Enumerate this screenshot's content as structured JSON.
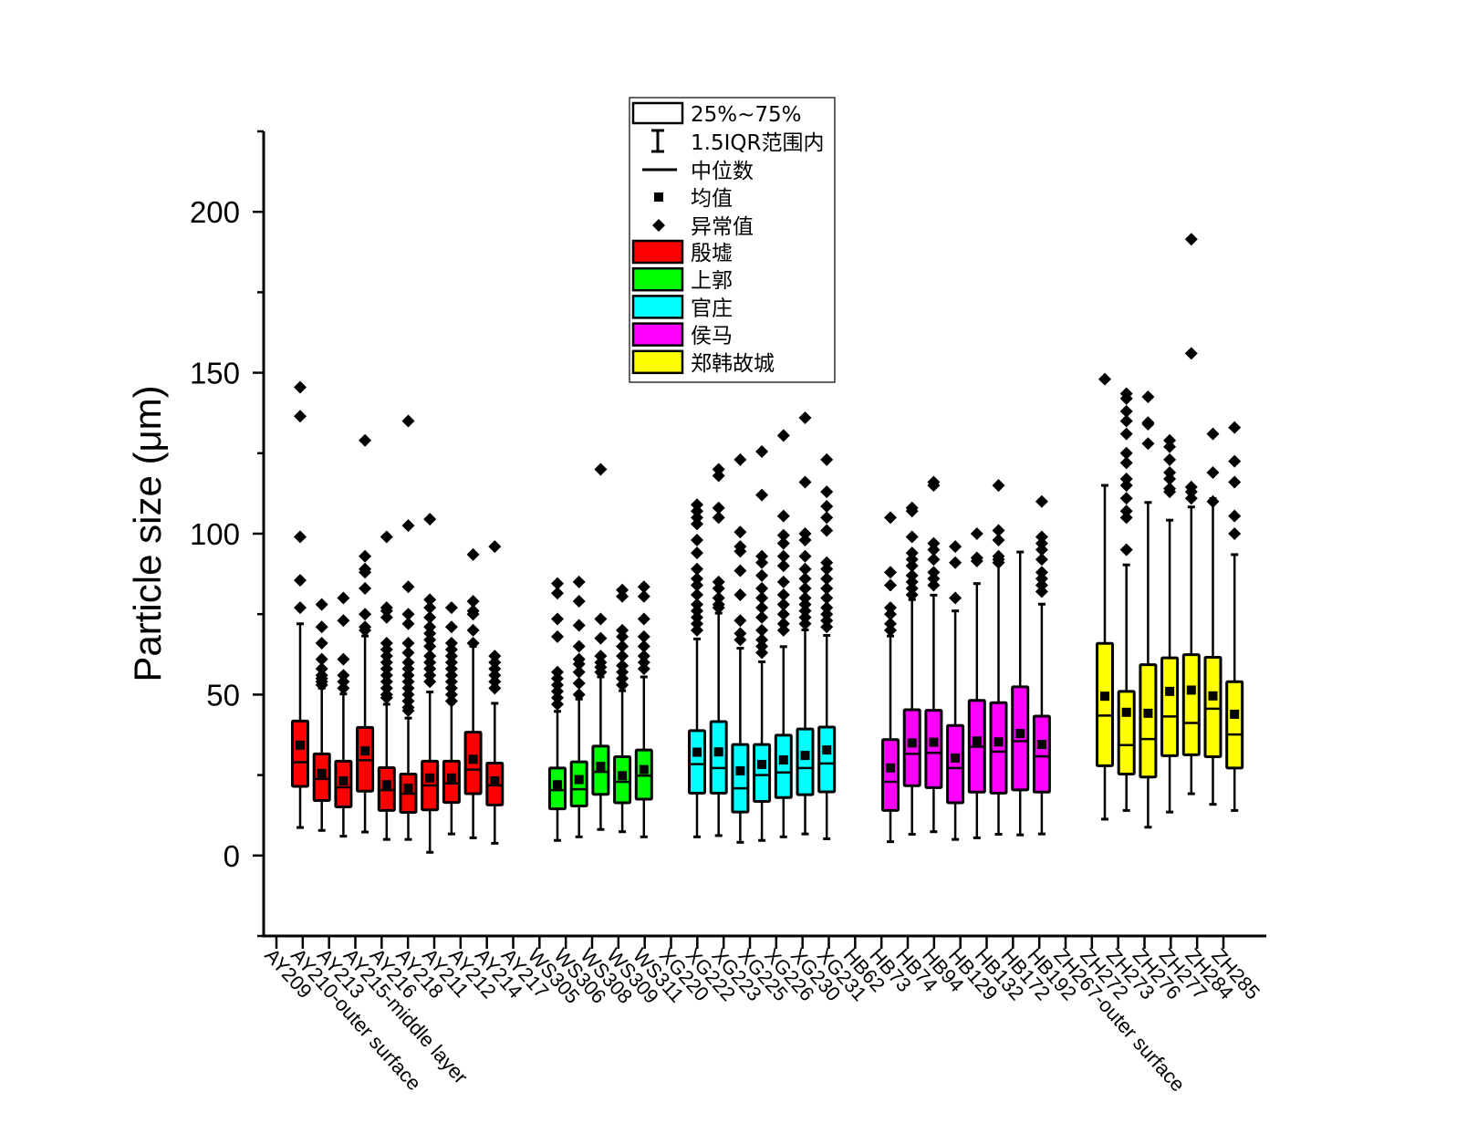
{
  "chart_data": {
    "type": "box",
    "title": "",
    "xlabel": "",
    "ylabel": "Particle size (μm)",
    "ylim": [
      -25,
      225
    ],
    "yticks": [
      0,
      50,
      100,
      150,
      200
    ],
    "grid": false,
    "legend_placement": "top-center",
    "legend": {
      "box_label": "25%~75%",
      "whisker_label": "1.5IQR范围内",
      "median_label": "中位数",
      "mean_label": "均值",
      "outlier_label": "异常值"
    },
    "categories": [
      "AY209",
      "AY210-outer surface",
      "AY213",
      "AY215-middle layer",
      "AY216",
      "AY218",
      "AY211",
      "AY212",
      "AY214",
      "AY217",
      "WS305",
      "WS306",
      "WS308",
      "WS309",
      "WS311",
      "XG220",
      "XG222",
      "XG223",
      "XG225",
      "XG226",
      "XG230",
      "XG231",
      "HB62",
      "HB73",
      "HB74",
      "HB94",
      "HB129",
      "HB132",
      "HB172",
      "HB192",
      "ZH267-outer surface",
      "ZH272",
      "ZH273",
      "ZH276",
      "ZH277",
      "ZH284",
      "ZH285"
    ],
    "series": [
      {
        "name": "殷墟",
        "color": "#ff0000",
        "boxes": [
          {
            "min": 8.7,
            "q1": 21.5,
            "median": 29,
            "mean": 34.3,
            "q3": 41.8,
            "max": 72,
            "outliers": [
              145.5,
              136.5,
              99,
              85.5,
              77
            ]
          },
          {
            "min": 7.8,
            "q1": 17.1,
            "median": 23.8,
            "mean": 25.5,
            "q3": 31.6,
            "max": 52,
            "outliers": [
              78,
              71,
              66,
              61,
              58,
              56,
              55,
              54,
              53
            ]
          },
          {
            "min": 6,
            "q1": 15.1,
            "median": 21.2,
            "mean": 23.2,
            "q3": 29.3,
            "max": 50.2,
            "outliers": [
              80,
              73,
              61,
              56,
              54,
              52
            ]
          },
          {
            "min": 7.3,
            "q1": 20,
            "median": 29.6,
            "mean": 32.5,
            "q3": 39.8,
            "max": 68.2,
            "outliers": [
              129,
              93,
              89,
              88,
              83,
              75,
              71,
              70
            ]
          },
          {
            "min": 5,
            "q1": 14,
            "median": 20.3,
            "mean": 22,
            "q3": 27.3,
            "max": 47,
            "outliers": [
              99,
              77,
              76,
              74,
              66,
              64,
              62,
              60,
              58,
              56,
              54,
              52,
              50,
              49
            ]
          },
          {
            "min": 5,
            "q1": 13.4,
            "median": 19.2,
            "mean": 20.9,
            "q3": 25.3,
            "max": 42.7,
            "outliers": [
              135,
              102.5,
              83.5,
              75,
              72,
              66,
              63,
              60,
              58,
              56,
              54,
              52,
              50,
              48,
              46,
              45
            ]
          },
          {
            "min": 1,
            "q1": 14.2,
            "median": 21.8,
            "mean": 24.1,
            "q3": 29.3,
            "max": 50.8,
            "outliers": [
              104.5,
              79.5,
              77,
              74,
              71,
              69,
              67,
              65,
              62,
              60,
              58,
              56,
              54
            ]
          },
          {
            "min": 6.7,
            "q1": 16.5,
            "median": 22.4,
            "mean": 24.1,
            "q3": 29.3,
            "max": 47.3,
            "outliers": [
              77,
              71,
              66,
              64,
              62,
              60,
              58,
              56,
              54,
              52,
              50,
              48
            ]
          },
          {
            "min": 5.5,
            "q1": 19.2,
            "median": 26.7,
            "mean": 29.9,
            "q3": 38.3,
            "max": 65,
            "outliers": [
              93.5,
              79,
              76,
              75,
              70,
              66
            ]
          },
          {
            "min": 3.8,
            "q1": 15.7,
            "median": 21.8,
            "mean": 23.2,
            "q3": 28.7,
            "max": 47.3,
            "outliers": [
              96,
              62,
              60,
              58,
              56,
              54,
              52
            ]
          }
        ]
      },
      {
        "name": "上郭",
        "color": "#00ff00",
        "boxes": [
          {
            "min": 4.7,
            "q1": 14.5,
            "median": 20.3,
            "mean": 22,
            "q3": 27.2,
            "max": 44.8,
            "outliers": [
              84.5,
              81.5,
              73.5,
              68,
              57,
              55,
              53,
              51,
              49,
              47
            ]
          },
          {
            "min": 5.8,
            "q1": 15.4,
            "median": 20.6,
            "mean": 23.6,
            "q3": 29.1,
            "max": 48.6,
            "outliers": [
              85,
              79,
              71.5,
              65,
              61,
              59.5,
              57,
              53.5,
              50
            ]
          },
          {
            "min": 8.1,
            "q1": 19,
            "median": 26,
            "mean": 27.7,
            "q3": 34,
            "max": 55.5,
            "outliers": [
              120,
              73.5,
              67.5,
              62,
              60,
              58.5,
              57
            ]
          },
          {
            "min": 7.4,
            "q1": 16.4,
            "median": 22.9,
            "mean": 24.8,
            "q3": 30.7,
            "max": 51.2,
            "outliers": [
              82.5,
              80.5,
              70,
              68,
              65,
              62,
              59,
              57,
              55,
              53
            ]
          },
          {
            "min": 5.8,
            "q1": 17.5,
            "median": 24.8,
            "mean": 26.7,
            "q3": 32.8,
            "max": 55.5,
            "outliers": [
              83.5,
              80.5,
              73.5,
              68,
              65,
              62,
              60,
              58
            ]
          }
        ]
      },
      {
        "name": "官庄",
        "color": "#00ffff",
        "boxes": [
          {
            "min": 5.8,
            "q1": 19.4,
            "median": 28.4,
            "mean": 32.1,
            "q3": 38.8,
            "max": 67.3,
            "outliers": [
              109,
              107,
              105,
              103,
              98,
              94,
              89,
              86,
              84,
              81,
              78,
              76,
              74,
              72,
              70
            ]
          },
          {
            "min": 6.2,
            "q1": 19.4,
            "median": 27.2,
            "mean": 32.2,
            "q3": 41.6,
            "max": 75.3,
            "outliers": [
              120,
              118,
              108,
              105,
              85,
              83,
              80,
              78,
              77
            ]
          },
          {
            "min": 4.1,
            "q1": 13.5,
            "median": 20.9,
            "mean": 26.3,
            "q3": 34.5,
            "max": 64.4,
            "outliers": [
              123,
              100.5,
              96,
              94.5,
              88.5,
              81,
              73,
              69,
              67
            ]
          },
          {
            "min": 4.7,
            "q1": 16.8,
            "median": 25,
            "mean": 28.3,
            "q3": 34.5,
            "max": 60.2,
            "outliers": [
              125.5,
              112,
              93,
              91,
              87,
              83,
              80,
              77,
              74,
              70,
              67,
              65,
              63
            ]
          },
          {
            "min": 5.8,
            "q1": 18,
            "median": 25.8,
            "mean": 29.7,
            "q3": 37.4,
            "max": 64.9,
            "outliers": [
              130.5,
              105.5,
              99.5,
              97,
              93,
              90,
              85,
              81,
              78,
              75,
              72,
              70
            ]
          },
          {
            "min": 6.7,
            "q1": 18.9,
            "median": 27.2,
            "mean": 31.1,
            "q3": 39.3,
            "max": 70.1,
            "outliers": [
              136,
              116,
              100,
              98,
              93,
              89,
              86,
              83,
              80,
              78,
              76,
              74,
              72
            ]
          },
          {
            "min": 5.2,
            "q1": 19.8,
            "median": 28.6,
            "mean": 32.8,
            "q3": 39.9,
            "max": 68.4,
            "outliers": [
              123,
              113,
              108.5,
              105,
              101,
              91,
              89,
              86,
              83,
              80,
              77,
              75,
              73,
              71
            ]
          }
        ]
      },
      {
        "name": "侯马",
        "color": "#ff00ff",
        "boxes": [
          {
            "min": 4.3,
            "q1": 14,
            "median": 22.9,
            "mean": 27.2,
            "q3": 36,
            "max": 68.2,
            "outliers": [
              105,
              88,
              84,
              77,
              75,
              72,
              70
            ]
          },
          {
            "min": 6.6,
            "q1": 21.7,
            "median": 31.6,
            "mean": 35,
            "q3": 45.3,
            "max": 79.5,
            "outliers": [
              108,
              107,
              99,
              94,
              92,
              90,
              87,
              85,
              83,
              81
            ]
          },
          {
            "min": 7.4,
            "q1": 21.1,
            "median": 31.9,
            "mean": 35.2,
            "q3": 45.1,
            "max": 80.9,
            "outliers": [
              116,
              115,
              97,
              95,
              92,
              88,
              86,
              84
            ]
          },
          {
            "min": 5,
            "q1": 16.4,
            "median": 27.2,
            "mean": 30.3,
            "q3": 40.4,
            "max": 76,
            "outliers": [
              96,
              91,
              80
            ]
          },
          {
            "min": 5.5,
            "q1": 19.7,
            "median": 33.8,
            "mean": 35.6,
            "q3": 48.2,
            "max": 84.5,
            "outliers": [
              100,
              92.5,
              91.5
            ]
          },
          {
            "min": 6.6,
            "q1": 19.4,
            "median": 32.3,
            "mean": 35.3,
            "q3": 47.5,
            "max": 91.7,
            "outliers": [
              115,
              101,
              98,
              93,
              92,
              91
            ]
          },
          {
            "min": 6.4,
            "q1": 20.4,
            "median": 35.5,
            "mean": 37.9,
            "q3": 52.4,
            "max": 94.3,
            "outliers": []
          },
          {
            "min": 6.7,
            "q1": 19.7,
            "median": 30.8,
            "mean": 34.5,
            "q3": 43.3,
            "max": 78.1,
            "outliers": [
              110,
              99,
              97,
              95,
              92,
              88,
              86,
              84,
              82
            ]
          }
        ]
      },
      {
        "name": "郑韩故城",
        "color": "#ffff00",
        "boxes": [
          {
            "min": 11.3,
            "q1": 27.9,
            "median": 43.5,
            "mean": 49.5,
            "q3": 65.9,
            "max": 115,
            "outliers": [
              148
            ]
          },
          {
            "min": 14,
            "q1": 25.3,
            "median": 34.3,
            "mean": 44.5,
            "q3": 51,
            "max": 90.3,
            "outliers": [
              143.5,
              142,
              138,
              135,
              131,
              125,
              122,
              117,
              115,
              111,
              107,
              105,
              95
            ]
          },
          {
            "min": 8.8,
            "q1": 24.4,
            "median": 36.2,
            "mean": 44.2,
            "q3": 59.3,
            "max": 109.7,
            "outliers": [
              142.5,
              134.5,
              134,
              128
            ]
          },
          {
            "min": 13.5,
            "q1": 31,
            "median": 43.2,
            "mean": 51,
            "q3": 61.4,
            "max": 104.2,
            "outliers": [
              129,
              127,
              123,
              119,
              117,
              114,
              113
            ]
          },
          {
            "min": 19.2,
            "q1": 31.3,
            "median": 41.2,
            "mean": 51.4,
            "q3": 62.4,
            "max": 108.3,
            "outliers": [
              191.5,
              156,
              114.5,
              113,
              111
            ]
          },
          {
            "min": 15.9,
            "q1": 30.7,
            "median": 45.6,
            "mean": 49.6,
            "q3": 61.6,
            "max": 110.9,
            "outliers": [
              131,
              119,
              110
            ]
          },
          {
            "min": 14,
            "q1": 27.2,
            "median": 37.6,
            "mean": 43.9,
            "q3": 54,
            "max": 93.5,
            "outliers": [
              133,
              122.5,
              116,
              105.5,
              100
            ]
          }
        ]
      }
    ]
  }
}
